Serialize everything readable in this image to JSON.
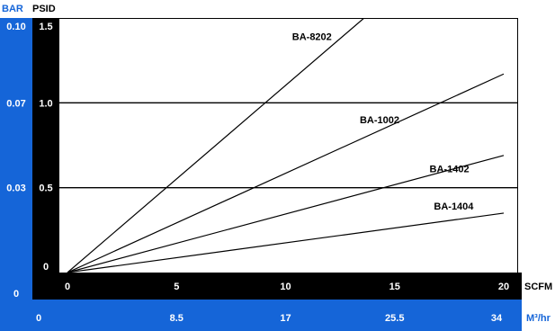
{
  "chart_data": {
    "type": "line",
    "axes": {
      "primary_x": {
        "label": "SCFM",
        "ticks": [
          0,
          5,
          10,
          15,
          20
        ],
        "range": [
          0,
          20
        ]
      },
      "primary_y": {
        "label": "PSID",
        "ticks": [
          0,
          0.5,
          1.0,
          1.5
        ],
        "tick_labels": [
          "0",
          "0.5",
          "1.0",
          "1.5"
        ],
        "range": [
          0,
          1.5
        ]
      },
      "secondary_x": {
        "label": "M³/hr",
        "ticks": [
          "0",
          "8.5",
          "17",
          "25.5",
          "34"
        ]
      },
      "secondary_y": {
        "label": "BAR",
        "ticks": [
          "0",
          "0.03",
          "0.07",
          "0.10"
        ]
      }
    },
    "grid": {
      "horizontal_at": [
        0.5,
        1.0
      ]
    },
    "series": [
      {
        "name": "BA-8202",
        "x": [
          0,
          13.6
        ],
        "y": [
          0,
          1.5
        ],
        "label_at": [
          10.3,
          1.37
        ]
      },
      {
        "name": "BA-1002",
        "x": [
          0,
          20
        ],
        "y": [
          0,
          1.17
        ],
        "label_at": [
          13.4,
          0.88
        ]
      },
      {
        "name": "BA-1402",
        "x": [
          0,
          20
        ],
        "y": [
          0,
          0.69
        ],
        "label_at": [
          16.6,
          0.59
        ]
      },
      {
        "name": "BA-1404",
        "x": [
          0,
          20
        ],
        "y": [
          0,
          0.35
        ],
        "label_at": [
          16.8,
          0.37
        ]
      }
    ],
    "colors": {
      "primary_axis": "#000000",
      "secondary_axis": "#1565d8",
      "lines": "#000000",
      "secondary_text": "#ffffff"
    }
  }
}
